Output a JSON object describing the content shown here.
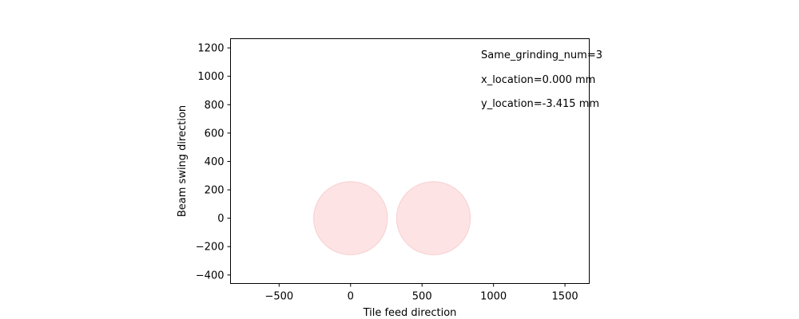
{
  "chart_data": {
    "type": "scatter",
    "title": "",
    "xlabel": "Tile feed direction",
    "ylabel": "Beam swing direction",
    "xlim": [
      -840,
      1670
    ],
    "ylim": [
      -460,
      1265
    ],
    "xticks": [
      -500,
      0,
      500,
      1000,
      1500
    ],
    "yticks": [
      -400,
      -200,
      0,
      200,
      400,
      600,
      800,
      1000,
      1200
    ],
    "grid": false,
    "circles": [
      {
        "x": 0,
        "y": 0,
        "r": 258,
        "color": "#fde3e4"
      },
      {
        "x": 580,
        "y": 0,
        "r": 258,
        "color": "#fde3e4"
      }
    ],
    "annotations": [
      "Same_grinding_num=3",
      "x_location=0.000 mm",
      "y_location=-3.415 mm"
    ]
  }
}
